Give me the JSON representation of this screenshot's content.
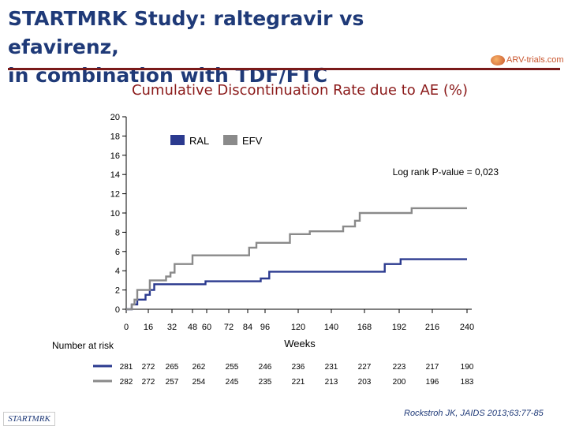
{
  "slide": {
    "title_line1": "STARTMRK Study: raltegravir vs efavirenz,",
    "title_line2": "in combination with TDF/FTC",
    "logo_text": "ARV-trials.com",
    "footer_left": "STARTMRK",
    "citation": "Rockstroh JK, JAIDS 2013;63:77-85"
  },
  "colors": {
    "ral": "#2b3a8f",
    "efv": "#8a8a8a",
    "title": "#1f3a78",
    "subtitle": "#8b1a1a"
  },
  "chart_data": {
    "type": "line",
    "title": "Cumulative Discontinuation Rate due to AE (%)",
    "xlabel": "Weeks",
    "ylabel": "",
    "xlim": [
      0,
      240
    ],
    "ylim": [
      0,
      20
    ],
    "x_ticks": [
      0,
      16,
      32,
      48,
      60,
      72,
      84,
      96,
      120,
      140,
      168,
      192,
      216,
      240
    ],
    "y_ticks": [
      0,
      2,
      4,
      6,
      8,
      10,
      12,
      14,
      16,
      18,
      20
    ],
    "grid": false,
    "legend_position": "top-center",
    "annotation": "Log rank P-value = 0,023",
    "series": [
      {
        "name": "RAL",
        "color": "#2b3a8f",
        "points": [
          [
            0,
            0
          ],
          [
            4,
            0
          ],
          [
            4,
            0.5
          ],
          [
            8,
            0.5
          ],
          [
            8,
            1.0
          ],
          [
            14,
            1.0
          ],
          [
            14,
            1.5
          ],
          [
            17,
            1.5
          ],
          [
            17,
            2.0
          ],
          [
            20,
            2.0
          ],
          [
            20,
            2.6
          ],
          [
            59,
            2.6
          ],
          [
            59,
            2.9
          ],
          [
            93,
            2.9
          ],
          [
            93,
            3.2
          ],
          [
            99,
            3.2
          ],
          [
            99,
            3.9
          ],
          [
            182,
            3.9
          ],
          [
            182,
            4.7
          ],
          [
            193,
            4.7
          ],
          [
            193,
            5.2
          ],
          [
            240,
            5.2
          ]
        ]
      },
      {
        "name": "EFV",
        "color": "#8a8a8a",
        "points": [
          [
            0,
            0
          ],
          [
            4,
            0
          ],
          [
            4,
            0.5
          ],
          [
            6,
            0.5
          ],
          [
            6,
            1.0
          ],
          [
            8,
            1.0
          ],
          [
            8,
            2.0
          ],
          [
            17,
            2.0
          ],
          [
            17,
            3.0
          ],
          [
            28,
            3.0
          ],
          [
            28,
            3.4
          ],
          [
            31,
            3.4
          ],
          [
            31,
            3.8
          ],
          [
            34,
            3.8
          ],
          [
            34,
            4.7
          ],
          [
            48,
            4.7
          ],
          [
            48,
            5.6
          ],
          [
            85,
            5.6
          ],
          [
            85,
            6.4
          ],
          [
            90,
            6.4
          ],
          [
            90,
            6.9
          ],
          [
            114,
            6.9
          ],
          [
            114,
            7.8
          ],
          [
            127,
            7.8
          ],
          [
            127,
            8.1
          ],
          [
            150,
            8.1
          ],
          [
            150,
            8.6
          ],
          [
            160,
            8.6
          ],
          [
            160,
            9.2
          ],
          [
            164,
            9.2
          ],
          [
            164,
            10.0
          ],
          [
            201,
            10.0
          ],
          [
            201,
            10.5
          ],
          [
            240,
            10.5
          ]
        ]
      }
    ],
    "risk_table": {
      "label": "Number at risk",
      "rows": [
        {
          "name": "RAL",
          "values": [
            "281",
            "272",
            "265",
            "262",
            "255",
            "246",
            "236",
            "231",
            "227",
            "223",
            "217",
            "190"
          ]
        },
        {
          "name": "EFV",
          "values": [
            "282",
            "272",
            "257",
            "254",
            "245",
            "235",
            "221",
            "213",
            "203",
            "200",
            "196",
            "183"
          ]
        }
      ]
    }
  }
}
